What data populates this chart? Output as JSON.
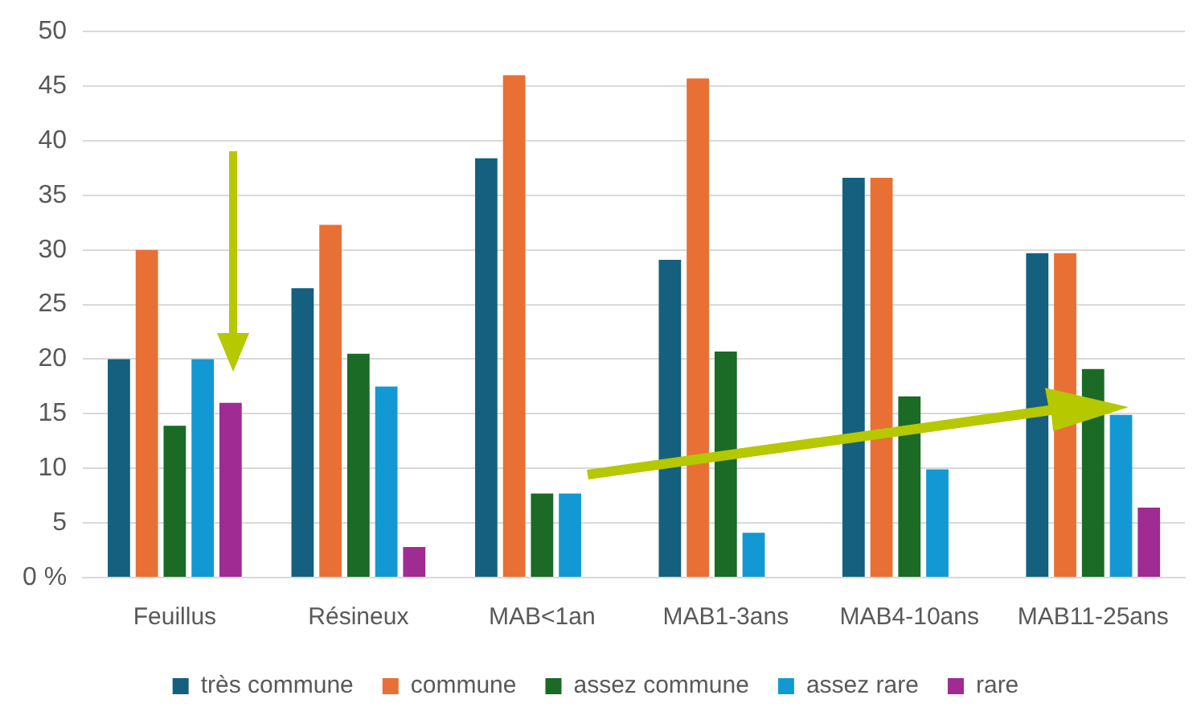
{
  "chart_data": {
    "type": "bar",
    "categories": [
      "Feuillus",
      "Résineux",
      "MAB<1an",
      "MAB1-3ans",
      "MAB4-10ans",
      "MAB11-25ans"
    ],
    "series": [
      {
        "name": "très commune",
        "color": "#15607f",
        "values": [
          20,
          26.5,
          38.4,
          29.1,
          36.6,
          29.7
        ]
      },
      {
        "name": "commune",
        "color": "#e87034",
        "values": [
          30,
          32.3,
          46.0,
          45.7,
          36.6,
          29.7
        ]
      },
      {
        "name": "assez commune",
        "color": "#1b6a25",
        "values": [
          13.9,
          20.5,
          7.7,
          20.7,
          16.6,
          19.1
        ]
      },
      {
        "name": "assez rare",
        "color": "#1299d3",
        "values": [
          20,
          17.5,
          7.7,
          4.1,
          9.9,
          14.9
        ]
      },
      {
        "name": "rare",
        "color": "#a02b93",
        "values": [
          16,
          2.8,
          0,
          0,
          0,
          6.4
        ]
      }
    ],
    "ylim": [
      0,
      50
    ],
    "yticks": [
      {
        "value": 0,
        "label": "0 %"
      },
      5,
      10,
      15,
      20,
      25,
      30,
      35,
      40,
      45,
      50
    ],
    "grid": "y",
    "legend": "bottom"
  }
}
